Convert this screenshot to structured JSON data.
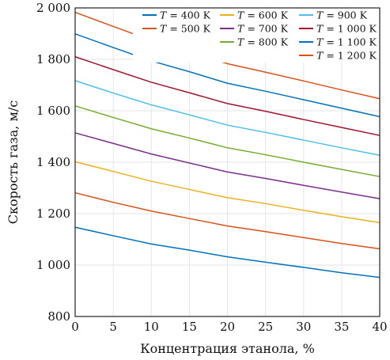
{
  "chart_data": {
    "type": "line",
    "xlabel": "Концентрация этанола, %",
    "ylabel": "Скорость газа, м/с",
    "xlim": [
      0,
      40
    ],
    "ylim": [
      800,
      2000
    ],
    "xticks": [
      0,
      5,
      10,
      15,
      20,
      25,
      30,
      35,
      40
    ],
    "yticks": [
      800,
      1000,
      1200,
      1400,
      1600,
      1800,
      2000
    ],
    "ytick_labels": [
      "800",
      "1 000",
      "1 200",
      "1 400",
      "1 600",
      "1 800",
      "2 000"
    ],
    "grid": true,
    "legend_position": "top-right",
    "legend_var": "T",
    "x": [
      0,
      5,
      10,
      15,
      20,
      25,
      30,
      35,
      40
    ],
    "series": [
      {
        "name": "= 400 K",
        "color": "#0072bd",
        "values": [
          1147,
          1114,
          1082,
          1058,
          1032,
          1011,
          991,
          970,
          952
        ]
      },
      {
        "name": "= 500 K",
        "color": "#d95319",
        "values": [
          1281,
          1244,
          1210,
          1181,
          1152,
          1130,
          1107,
          1084,
          1063
        ]
      },
      {
        "name": "= 600 K",
        "color": "#edb120",
        "values": [
          1402,
          1364,
          1326,
          1294,
          1262,
          1239,
          1213,
          1188,
          1165
        ]
      },
      {
        "name": "= 700 K",
        "color": "#7e2f8e",
        "values": [
          1514,
          1473,
          1432,
          1397,
          1362,
          1337,
          1310,
          1284,
          1258
        ]
      },
      {
        "name": "= 800 K",
        "color": "#77ac30",
        "values": [
          1619,
          1574,
          1530,
          1494,
          1456,
          1429,
          1400,
          1372,
          1344
        ]
      },
      {
        "name": "= 900 K",
        "color": "#4dbeee",
        "values": [
          1717,
          1669,
          1623,
          1584,
          1544,
          1516,
          1486,
          1456,
          1427
        ]
      },
      {
        "name": "= 1 000 K",
        "color": "#a2142f",
        "values": [
          1810,
          1760,
          1711,
          1670,
          1628,
          1598,
          1566,
          1535,
          1504
        ]
      },
      {
        "name": "= 1 100 K",
        "color": "#0072bd",
        "values": [
          1899,
          1846,
          1794,
          1752,
          1707,
          1676,
          1643,
          1610,
          1577
        ]
      },
      {
        "name": "= 1 200 K",
        "color": "#d95319",
        "values": [
          1983,
          1928,
          1874,
          1830,
          1783,
          1750,
          1716,
          1681,
          1647
        ]
      }
    ]
  }
}
